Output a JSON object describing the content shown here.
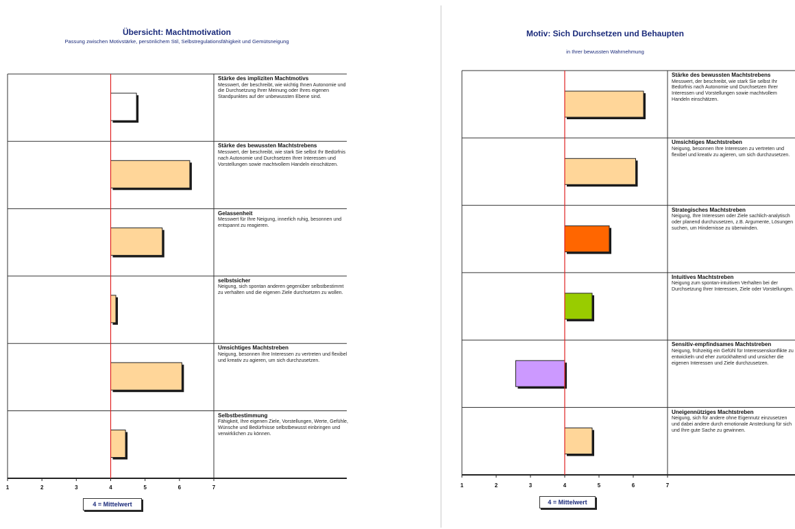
{
  "colors": {
    "title": "#1a2a7a",
    "midline": "#e02020",
    "shadow": "#1a1a1a"
  },
  "chart_data": [
    {
      "type": "bar",
      "orientation": "horizontal",
      "title": "Übersicht: Machtmotivation",
      "subtitle": "Passung zwischen Motivstärke, persönlichem Stil, Selbstregulationsfähigkeit und Gemütsneigung",
      "xlim": [
        1,
        7
      ],
      "xticks": [
        "1",
        "2",
        "3",
        "4",
        "5",
        "6",
        "7"
      ],
      "baseline": 4,
      "legend": "4 = Mittelwert",
      "categories": [
        {
          "title": "Stärke des impliziten Machtmotivs",
          "text": "Messwert, der beschreibt, wie wichtig Ihnen Autonomie und die Durchsetzung Ihrer Meinung oder Ihres eigenen Standpunktes auf der unbewussten Ebene sind.",
          "value": 4.75,
          "color": "#ffffff"
        },
        {
          "title": "Stärke des bewussten Machtstrebens",
          "text": "Messwert, der beschreibt, wie stark Sie selbst Ihr Bedürfnis nach Autonomie und Durchsetzen Ihrer Interessen und Vorstellungen sowie machtvollem Handeln einschätzen.",
          "value": 6.3,
          "color": "#ffd699"
        },
        {
          "title": "Gelassenheit",
          "text": "Messwert für Ihre Neigung, innerlich ruhig, besonnen und entspannt zu reagieren.",
          "value": 5.5,
          "color": "#ffd699"
        },
        {
          "title": "selbstsicher",
          "text": "Neigung, sich spontan anderen gegenüber selbstbestimmt zu verhalten und die eigenen Ziele durchsetzen zu wollen.",
          "value": 4.15,
          "color": "#ffd699"
        },
        {
          "title": "Umsichtiges Machtstreben",
          "text": "Neigung, besonnen Ihre Interessen zu vertreten und flexibel und kreativ zu agieren, um sich durchzusetzen.",
          "value": 6.07,
          "color": "#ffd699"
        },
        {
          "title": "Selbstbestimmung",
          "text": "Fähigkeit, Ihre eigenen Ziele, Vorstellungen, Werte, Gefühle, Wünsche und Bedürfnisse selbstbewusst einbringen und verwirklichen zu können.",
          "value": 4.43,
          "color": "#ffd699"
        }
      ]
    },
    {
      "type": "bar",
      "orientation": "horizontal",
      "title": "Motiv: Sich Durchsetzen und Behaupten",
      "subtitle": "in Ihrer bewussten Wahrnehmung",
      "xlim": [
        1,
        7
      ],
      "xticks": [
        "1",
        "2",
        "3",
        "4",
        "5",
        "6",
        "7"
      ],
      "baseline": 4,
      "legend": "4 = Mittelwert",
      "categories": [
        {
          "title": "Stärke des bewussten Machtstrebens",
          "text": "Messwert, der beschreibt, wie stark Sie selbst Ihr Bedürfnis nach Autonomie und Durchsetzen Ihrer Interessen und Vorstellungen sowie machtvollem Handeln einschätzen.",
          "value": 6.3,
          "color": "#ffd699"
        },
        {
          "title": "Umsichtiges Machtstreben",
          "text": "Neigung, besonnen Ihre Interessen zu vertreten und flexibel und kreativ zu agieren, um sich durchzusetzen.",
          "value": 6.07,
          "color": "#ffd699"
        },
        {
          "title": "Strategisches Machtstreben",
          "text": "Neigung, Ihre Interessen oder Ziele sachlich-analytisch oder planend durchzusetzen, z.B. Argumente, Lösungen suchen, um Hindernisse zu überwinden.",
          "value": 5.3,
          "color": "#ff6600"
        },
        {
          "title": "Intuitives Machtstreben",
          "text": "Neigung zum spontan-intuitiven Verhalten bei der Durchsetzung Ihrer Interessen, Ziele oder Vorstellungen.",
          "value": 4.8,
          "color": "#99cc00"
        },
        {
          "title": "Sensitiv-empfindsames Machtstreben",
          "text": "Neigung, frühzeitig ein Gefühl für Interessenskonflikte zu entwickeln und eher zurückhaltend und unsicher die eigenen Interessen und Ziele durchzusetzen.",
          "value": 2.57,
          "color": "#cc99ff"
        },
        {
          "title": "Uneigennütziges Machtstreben",
          "text": "Neigung, sich für andere ohne Eigennutz einzusetzen und dabei andere durch emotionale Ansteckung für sich und Ihre gute Sache zu gewinnen.",
          "value": 4.8,
          "color": "#ffd699"
        }
      ]
    }
  ]
}
